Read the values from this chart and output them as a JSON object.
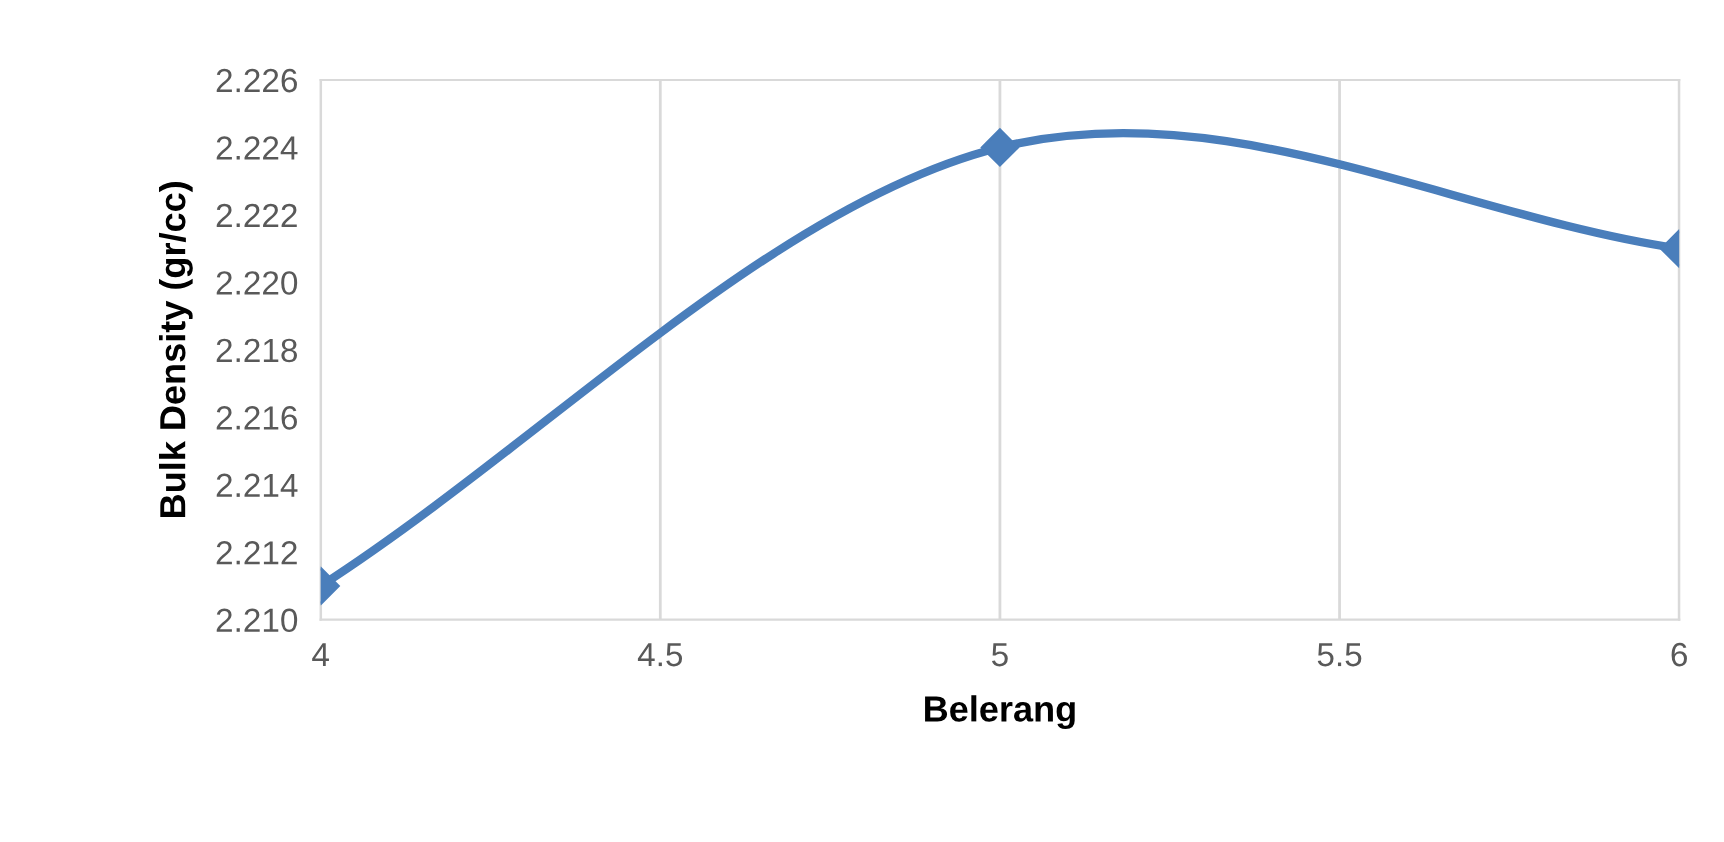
{
  "chart_data": {
    "type": "line",
    "xlabel": "Belerang",
    "ylabel": "Bulk Density (gr/cc)",
    "x": [
      4,
      5,
      6
    ],
    "series": [
      {
        "color": "#4a7ebb",
        "values": [
          2.211,
          2.224,
          2.221
        ]
      }
    ],
    "xlim": [
      4,
      6
    ],
    "xticks": [
      4,
      4.5,
      5,
      5.5,
      6
    ],
    "ylim": [
      2.21,
      2.226
    ],
    "yticks": [
      {
        "value": 2.21,
        "label": "2.210"
      },
      2.212,
      2.214,
      2.216,
      2.218,
      {
        "value": 2.22,
        "label": "2.220"
      },
      2.222,
      2.224,
      2.226
    ],
    "grid": "x",
    "marker": "diamond",
    "line_style": "solid"
  }
}
